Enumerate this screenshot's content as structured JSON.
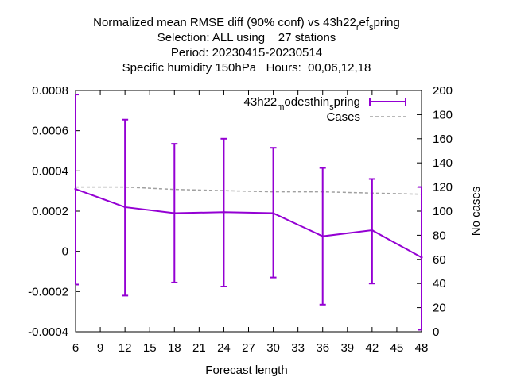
{
  "chart_data": {
    "type": "line",
    "title_lines": [
      "Normalized mean RMSE diff (90% conf) vs 43h22",
      "Selection: ALL using    27 stations",
      "Period: 20230415-20230514",
      "Specific humidity 150hPa   Hours:  00,06,12,18"
    ],
    "title_sub_parts": {
      "ref": "r",
      "ef": "ef",
      "s": "s",
      "pring": "pring"
    },
    "xlabel": "Forecast length",
    "ylabel": "",
    "y2label": "No cases",
    "xlim": [
      6,
      48
    ],
    "ylim": [
      -0.0004,
      0.0008
    ],
    "y2lim": [
      0,
      200
    ],
    "x_ticks": [
      6,
      9,
      12,
      15,
      18,
      21,
      24,
      27,
      30,
      33,
      36,
      39,
      42,
      45,
      48
    ],
    "y_ticks": [
      "-0.0004",
      "-0.0002",
      "0",
      "0.0002",
      "0.0004",
      "0.0006",
      "0.0008"
    ],
    "y_tick_values": [
      -0.0004,
      -0.0002,
      0,
      0.0002,
      0.0004,
      0.0006,
      0.0008
    ],
    "y2_ticks": [
      0,
      20,
      40,
      60,
      80,
      100,
      120,
      140,
      160,
      180,
      200
    ],
    "series": [
      {
        "name_parts": {
          "a": "43h22",
          "b": "m",
          "c": "odesthin",
          "d": "s",
          "e": "pring"
        },
        "color": "#9400d3",
        "x": [
          6,
          12,
          18,
          24,
          30,
          36,
          42,
          48
        ],
        "y": [
          0.00031,
          0.00022,
          0.00019,
          0.000195,
          0.00019,
          7.5e-05,
          0.000105,
          -3e-05
        ],
        "err_low": [
          -0.000165,
          -0.00022,
          -0.000155,
          -0.000175,
          -0.00013,
          -0.000265,
          -0.00016,
          -0.00039
        ],
        "err_high": [
          0.00078,
          0.000655,
          0.000535,
          0.00056,
          0.000515,
          0.000415,
          0.00036,
          0.00032
        ]
      },
      {
        "name": "Cases",
        "color": "#a0a0a0",
        "x": [
          6,
          12,
          18,
          24,
          30,
          36,
          42,
          48
        ],
        "y": [
          120,
          120,
          118,
          117,
          116,
          116,
          115,
          114
        ]
      }
    ],
    "legend_position": "top-right",
    "grid": false
  }
}
